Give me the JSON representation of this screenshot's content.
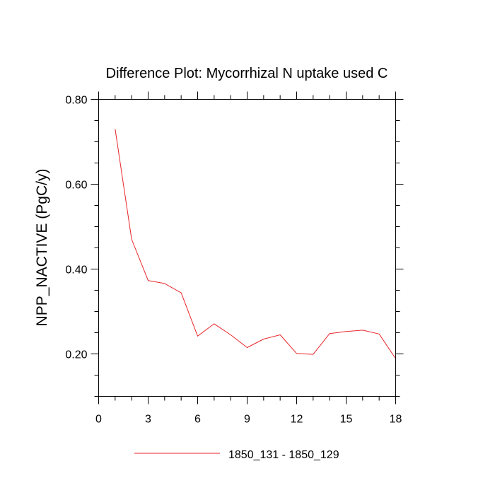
{
  "chart_data": {
    "type": "line",
    "title": "Difference Plot: Mycorrhizal N uptake used C",
    "xlabel": "",
    "ylabel": "NPP_NACTIVE  (PgC/y)",
    "xlim": [
      0,
      18
    ],
    "ylim": [
      0.1,
      0.8
    ],
    "x_ticks": [
      0,
      3,
      6,
      9,
      12,
      15,
      18
    ],
    "x_tick_labels": [
      "0",
      "3",
      "6",
      "9",
      "12",
      "15",
      "18"
    ],
    "y_ticks": [
      0.2,
      0.4,
      0.6,
      0.8
    ],
    "y_tick_labels": [
      "0.20",
      "0.40",
      "0.60",
      "0.80"
    ],
    "legend_position": "bottom-center",
    "grid": false,
    "series": [
      {
        "name": "1850_131 - 1850_129",
        "color": "#e8262b",
        "x": [
          1,
          2,
          3,
          4,
          5,
          6,
          7,
          8,
          9,
          10,
          11,
          12,
          13,
          14,
          15,
          16,
          17,
          18
        ],
        "y": [
          0.73,
          0.47,
          0.373,
          0.366,
          0.344,
          0.242,
          0.271,
          0.245,
          0.215,
          0.235,
          0.245,
          0.201,
          0.199,
          0.248,
          0.253,
          0.256,
          0.247,
          0.189
        ]
      }
    ]
  }
}
